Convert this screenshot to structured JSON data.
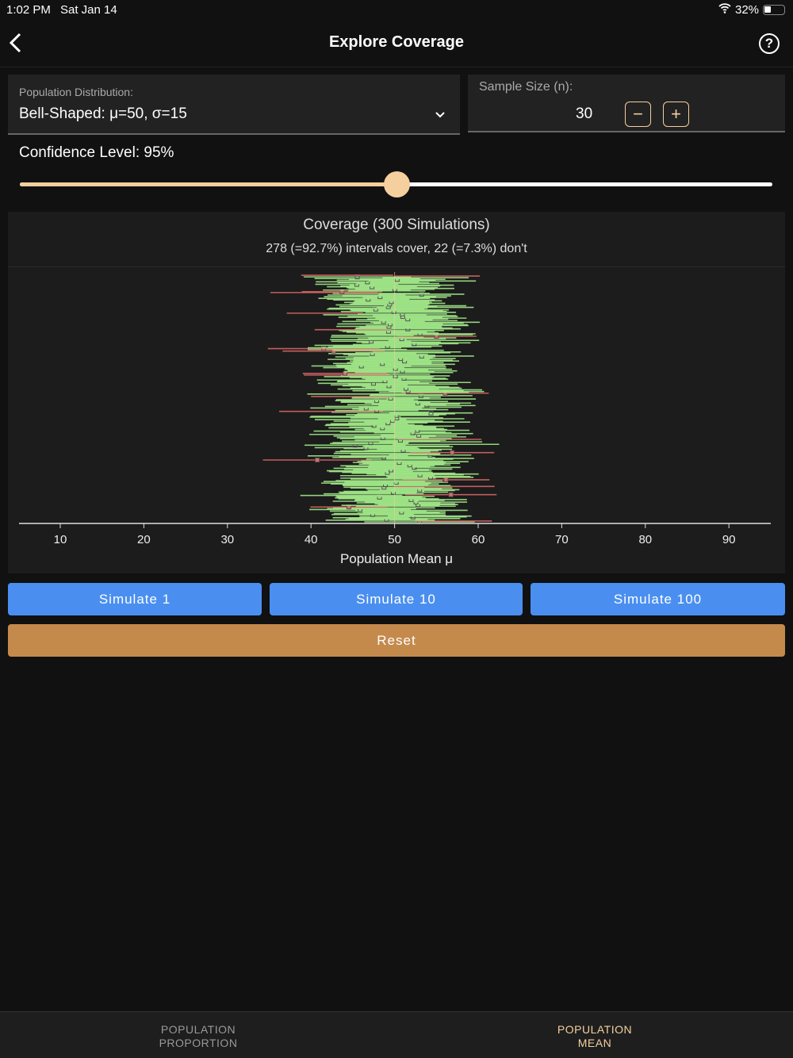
{
  "status": {
    "time": "1:02 PM",
    "date": "Sat Jan 14",
    "battery": "32%"
  },
  "nav": {
    "title": "Explore Coverage"
  },
  "distribution": {
    "label": "Population Distribution:",
    "value": "Bell-Shaped: μ=50, σ=15"
  },
  "sample": {
    "label": "Sample Size (n):",
    "value": "30",
    "minus": "−",
    "plus": "+"
  },
  "confidence": {
    "label": "Confidence Level: 95%",
    "slider_fraction": 0.5
  },
  "chart_data": {
    "type": "interval-plot",
    "title": "Coverage (300 Simulations)",
    "subtitle": "278 (=92.7%) intervals cover, 22 (=7.3%) don't",
    "xlabel": "Population Mean μ",
    "xlim": [
      5,
      95
    ],
    "ticks": [
      10,
      20,
      30,
      40,
      50,
      60,
      70,
      80,
      90
    ],
    "true_mean": 50,
    "sigma": 15,
    "n": 30,
    "simulations": 300,
    "cover": 278,
    "miss": 22,
    "cover_color": "#a8f28f",
    "miss_color": "#e06a6a"
  },
  "buttons": {
    "sim1": "Simulate 1",
    "sim10": "Simulate 10",
    "sim100": "Simulate 100",
    "reset": "Reset"
  },
  "tabs": [
    {
      "label": "POPULATION\nPROPORTION"
    },
    {
      "label": "POPULATION\nMEAN"
    }
  ],
  "colors": {
    "blue": "#4a8ff0",
    "reset": "#c48a4c",
    "accent": "#f5cf9d"
  }
}
